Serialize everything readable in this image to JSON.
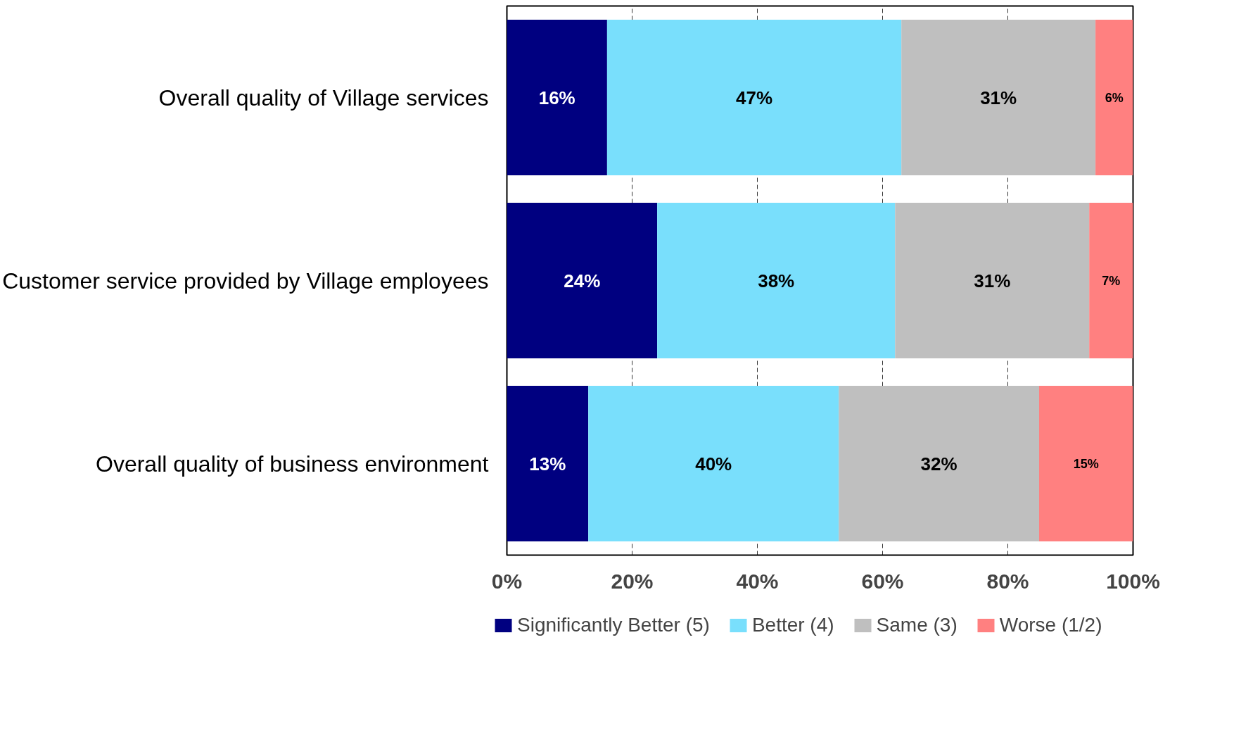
{
  "chart_data": {
    "type": "bar",
    "orientation": "horizontal",
    "stacked": true,
    "categories": [
      "Overall quality of Village services",
      "Customer service provided by Village employees",
      "Overall quality of business environment"
    ],
    "series": [
      {
        "name": "Significantly Better (5)",
        "color": "#000080",
        "values": [
          16,
          24,
          13
        ],
        "value_labels": [
          "16%",
          "24%",
          "13%"
        ]
      },
      {
        "name": "Better (4)",
        "color": "#79dffc",
        "values": [
          47,
          38,
          40
        ],
        "value_labels": [
          "47%",
          "38%",
          "40%"
        ]
      },
      {
        "name": "Same (3)",
        "color": "#bfbfbf",
        "values": [
          31,
          31,
          32
        ],
        "value_labels": [
          "31%",
          "31%",
          "32%"
        ]
      },
      {
        "name": "Worse (1/2)",
        "color": "#ff8080",
        "values": [
          6,
          7,
          15
        ],
        "value_labels": [
          "6%",
          "7%",
          "15%"
        ]
      }
    ],
    "xlim": [
      0,
      100
    ],
    "xticks": [
      {
        "value": 0,
        "label": "0%"
      },
      {
        "value": 20,
        "label": "20%"
      },
      {
        "value": 40,
        "label": "40%"
      },
      {
        "value": 60,
        "label": "60%"
      },
      {
        "value": 80,
        "label": "80%"
      },
      {
        "value": 100,
        "label": "100%"
      }
    ],
    "grid": "x",
    "legend": "bottom"
  }
}
